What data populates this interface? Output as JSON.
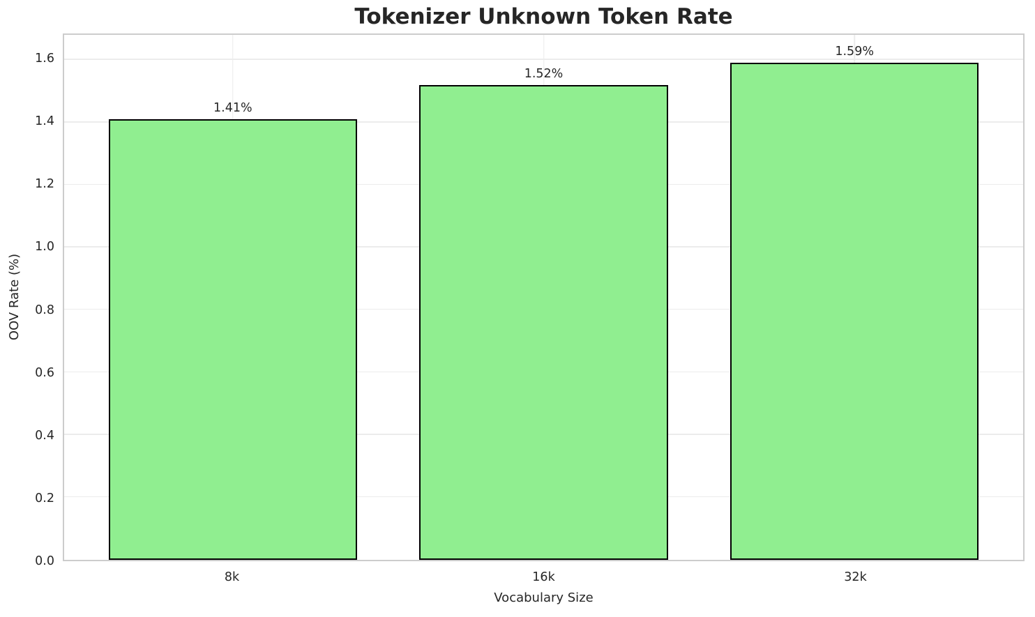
{
  "chart_data": {
    "type": "bar",
    "title": "Tokenizer Unknown Token Rate",
    "xlabel": "Vocabulary Size",
    "ylabel": "OOV Rate (%)",
    "categories": [
      "8k",
      "16k",
      "32k"
    ],
    "values": [
      1.41,
      1.52,
      1.59
    ],
    "bar_labels": [
      "1.41%",
      "1.52%",
      "1.59%"
    ],
    "yticks": [
      0.0,
      0.2,
      0.4,
      0.6,
      0.8,
      1.0,
      1.2,
      1.4,
      1.6
    ],
    "ytick_labels": [
      "0.0",
      "0.2",
      "0.4",
      "0.6",
      "0.8",
      "1.0",
      "1.2",
      "1.4",
      "1.6"
    ],
    "ylim": [
      0,
      1.68
    ],
    "grid": true,
    "legend": "none",
    "colors": {
      "bar_fill": "#90EE90",
      "bar_edge": "#000000",
      "grid_line": "#ececec",
      "spine": "#cccccc",
      "text": "#262626",
      "background": "#ffffff"
    }
  }
}
